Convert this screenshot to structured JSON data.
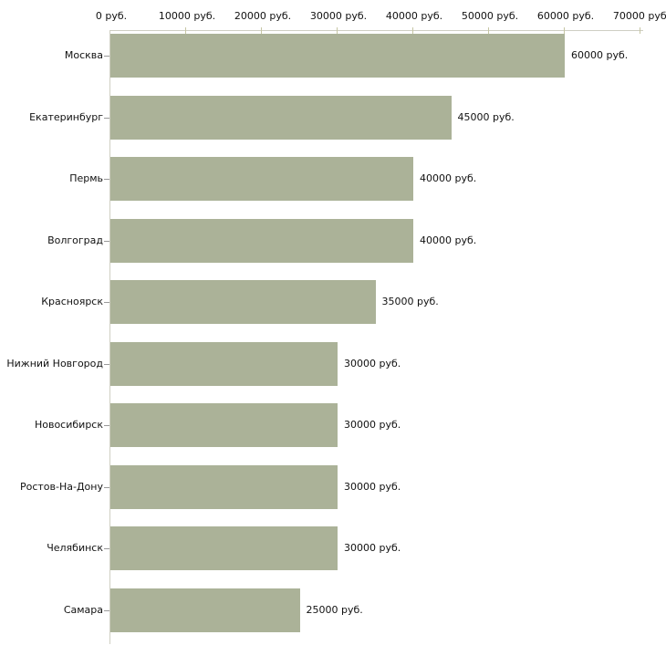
{
  "chart_data": {
    "type": "bar",
    "orientation": "horizontal",
    "title": "",
    "xlabel": "",
    "ylabel": "",
    "categories": [
      "Москва",
      "Екатеринбург",
      "Пермь",
      "Волгоград",
      "Красноярск",
      "Нижний Новгород",
      "Новосибирск",
      "Ростов-На-Дону",
      "Челябинск",
      "Самара"
    ],
    "values": [
      60000,
      45000,
      40000,
      40000,
      35000,
      30000,
      30000,
      30000,
      30000,
      25000
    ],
    "value_labels": [
      "60000 руб.",
      "45000 руб.",
      "40000 руб.",
      "40000 руб.",
      "35000 руб.",
      "30000 руб.",
      "30000 руб.",
      "30000 руб.",
      "30000 руб.",
      "25000 руб."
    ],
    "x_ticks": [
      0,
      10000,
      20000,
      30000,
      40000,
      50000,
      60000,
      70000
    ],
    "x_tick_labels": [
      "0 руб.",
      "10000 руб.",
      "20000 руб.",
      "30000 руб.",
      "40000 руб.",
      "50000 руб.",
      "60000 руб.",
      "70000 руб."
    ],
    "xlim": [
      0,
      70000
    ],
    "grid": false,
    "legend": null,
    "colors": {
      "bar": "#abb298",
      "axis": "#cfcfc3",
      "axis_tick": "#c6c6a4",
      "category_tick": "#999999",
      "text": "#111111",
      "background": "#ffffff"
    }
  }
}
